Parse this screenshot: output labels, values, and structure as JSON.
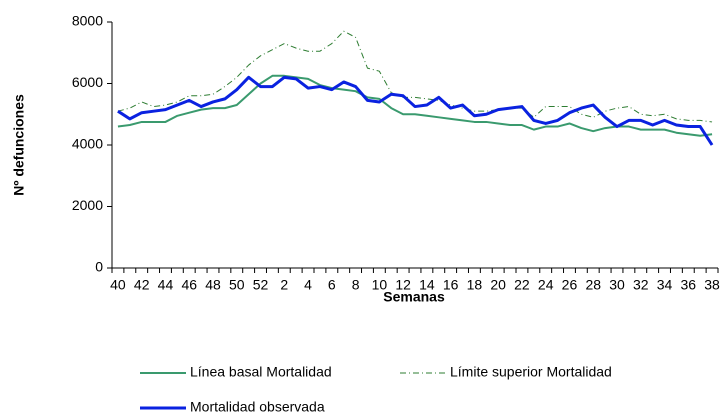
{
  "chart_data": {
    "type": "line",
    "x_label": "Semanas",
    "y_label": "Nº defunciones",
    "categories": [
      "40",
      null,
      "42",
      null,
      "44",
      null,
      "46",
      null,
      "48",
      null,
      "50",
      null,
      "52",
      null,
      "2",
      null,
      "4",
      null,
      "6",
      null,
      "8",
      null,
      "10",
      null,
      "12",
      null,
      "14",
      null,
      "16",
      null,
      "18",
      null,
      "20",
      null,
      "22",
      null,
      "24",
      null,
      "26",
      null,
      "28",
      null,
      "30",
      null,
      "32",
      null,
      "34",
      null,
      "36",
      null,
      "38"
    ],
    "series": [
      {
        "name": "Línea basal Mortalidad",
        "color": "#3a9a6e",
        "style": "solid",
        "width": 2,
        "values": [
          4600,
          4650,
          4750,
          4750,
          4750,
          4950,
          5050,
          5150,
          5200,
          5200,
          5300,
          5650,
          6000,
          6250,
          6250,
          6200,
          6150,
          5950,
          5850,
          5800,
          5750,
          5550,
          5500,
          5200,
          5000,
          5000,
          4950,
          4900,
          4850,
          4800,
          4750,
          4750,
          4700,
          4650,
          4650,
          4500,
          4600,
          4600,
          4700,
          4550,
          4450,
          4550,
          4600,
          4600,
          4500,
          4500,
          4500,
          4400,
          4350,
          4300,
          4350
        ]
      },
      {
        "name": "Límite superior Mortalidad",
        "color": "#2e7d32",
        "style": "dashdot",
        "width": 1,
        "values": [
          5100,
          5200,
          5400,
          5250,
          5300,
          5400,
          5600,
          5600,
          5650,
          5900,
          6200,
          6600,
          6900,
          7100,
          7300,
          7150,
          7050,
          7050,
          7300,
          7700,
          7500,
          6500,
          6400,
          5700,
          5550,
          5550,
          5500,
          5450,
          5300,
          5200,
          5100,
          5100,
          5150,
          5200,
          5200,
          4900,
          5250,
          5250,
          5250,
          5000,
          4900,
          5100,
          5200,
          5250,
          5000,
          4950,
          5000,
          4850,
          4800,
          4800,
          4750
        ]
      },
      {
        "name": "Mortalidad observada",
        "color": "#0a22e0",
        "style": "solid",
        "width": 3,
        "values": [
          5100,
          4850,
          5050,
          5100,
          5150,
          5300,
          5450,
          5250,
          5400,
          5500,
          5800,
          6200,
          5900,
          5900,
          6200,
          6150,
          5850,
          5900,
          5800,
          6050,
          5900,
          5450,
          5400,
          5650,
          5600,
          5250,
          5300,
          5550,
          5200,
          5300,
          4950,
          5000,
          5150,
          5200,
          5250,
          4800,
          4700,
          4800,
          5050,
          5200,
          5300,
          4900,
          4600,
          4800,
          4800,
          4650,
          4800,
          4650,
          4600,
          4600,
          4000
        ]
      }
    ],
    "ylim": [
      0,
      8000
    ],
    "yticks": [
      0,
      2000,
      4000,
      6000,
      8000
    ],
    "grid": false
  }
}
